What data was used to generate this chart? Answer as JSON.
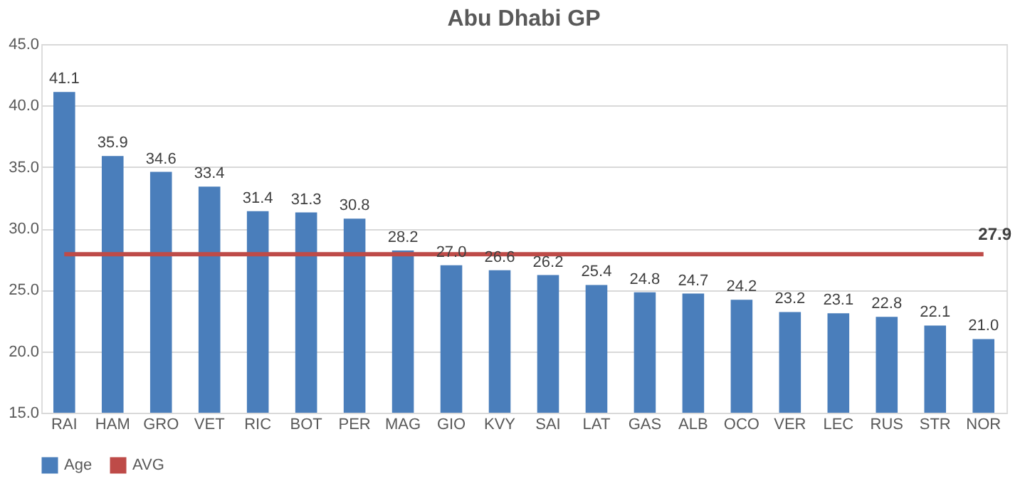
{
  "chart_data": {
    "type": "bar",
    "title": "Abu Dhabi GP",
    "categories": [
      "RAI",
      "HAM",
      "GRO",
      "VET",
      "RIC",
      "BOT",
      "PER",
      "MAG",
      "GIO",
      "KVY",
      "SAI",
      "LAT",
      "GAS",
      "ALB",
      "OCO",
      "VER",
      "LEC",
      "RUS",
      "STR",
      "NOR"
    ],
    "series": [
      {
        "name": "Age",
        "type": "bar",
        "color": "#4a7ebb",
        "values": [
          41.1,
          35.9,
          34.6,
          33.4,
          31.4,
          31.3,
          30.8,
          28.2,
          27.0,
          26.6,
          26.2,
          25.4,
          24.8,
          24.7,
          24.2,
          23.2,
          23.1,
          22.8,
          22.1,
          21.0
        ],
        "value_labels": [
          "41.1",
          "35.9",
          "34.6",
          "33.4",
          "31.4",
          "31.3",
          "30.8",
          "28.2",
          "27.0",
          "26.6",
          "26.2",
          "25.4",
          "24.8",
          "24.7",
          "24.2",
          "23.2",
          "23.1",
          "22.8",
          "22.1",
          "21.0"
        ]
      },
      {
        "name": "AVG",
        "type": "line",
        "color": "#be4b48",
        "values": [
          27.9,
          27.9,
          27.9,
          27.9,
          27.9,
          27.9,
          27.9,
          27.9,
          27.9,
          27.9,
          27.9,
          27.9,
          27.9,
          27.9,
          27.9,
          27.9,
          27.9,
          27.9,
          27.9,
          27.9
        ],
        "value_labels": [
          null,
          null,
          null,
          null,
          null,
          null,
          null,
          null,
          null,
          null,
          null,
          null,
          null,
          null,
          null,
          null,
          null,
          null,
          null,
          "27.9"
        ]
      }
    ],
    "ylim": [
      15,
      45
    ],
    "yticks": [
      {
        "value": 15,
        "label": "15.0"
      },
      {
        "value": 20,
        "label": "20.0"
      },
      {
        "value": 25,
        "label": "25.0"
      },
      {
        "value": 30,
        "label": "30.0"
      },
      {
        "value": 35,
        "label": "35.0"
      },
      {
        "value": 40,
        "label": "40.0"
      },
      {
        "value": 45,
        "label": "45.0"
      }
    ],
    "grid": "y",
    "legend": "bottom",
    "marker": "none",
    "line_style": "solid"
  }
}
